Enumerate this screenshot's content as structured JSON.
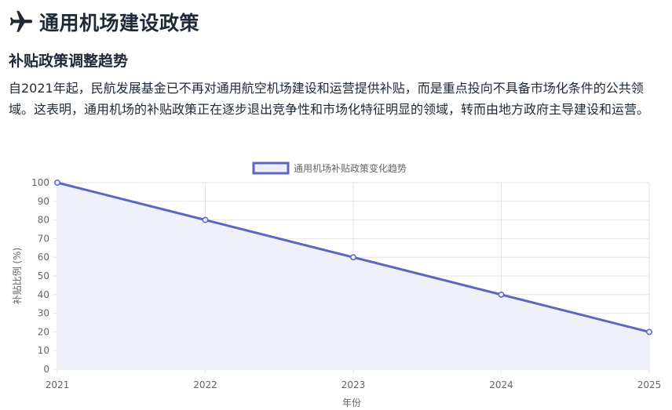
{
  "header": {
    "title": "通用机场建设政策",
    "icon": "airplane-icon"
  },
  "section": {
    "title": "补贴政策调整趋势",
    "paragraph": "自2021年起，民航发展基金已不再对通用航空机场建设和运营提供补贴，而是重点投向不具备市场化条件的公共领域。这表明，通用机场的补贴政策正在逐步退出竞争性和市场化特征明显的领域，转而由地方政府主导建设和运营。"
  },
  "chart_data": {
    "type": "line",
    "fill": true,
    "categories": [
      "2021",
      "2022",
      "2023",
      "2024",
      "2025"
    ],
    "series": [
      {
        "name": "通用机场补贴政策变化趋势",
        "values": [
          100,
          80,
          60,
          40,
          20
        ]
      }
    ],
    "xlabel": "年份",
    "ylabel": "补贴比例 (%)",
    "ylim": [
      0,
      100
    ],
    "yticks": [
      0,
      10,
      20,
      30,
      40,
      50,
      60,
      70,
      80,
      90,
      100
    ],
    "grid": true,
    "legend": "top-center",
    "colors": {
      "line": "#5c67c0",
      "fill": "#eceefa",
      "grid": "#e3e3e3",
      "tick_text": "#666666"
    }
  }
}
